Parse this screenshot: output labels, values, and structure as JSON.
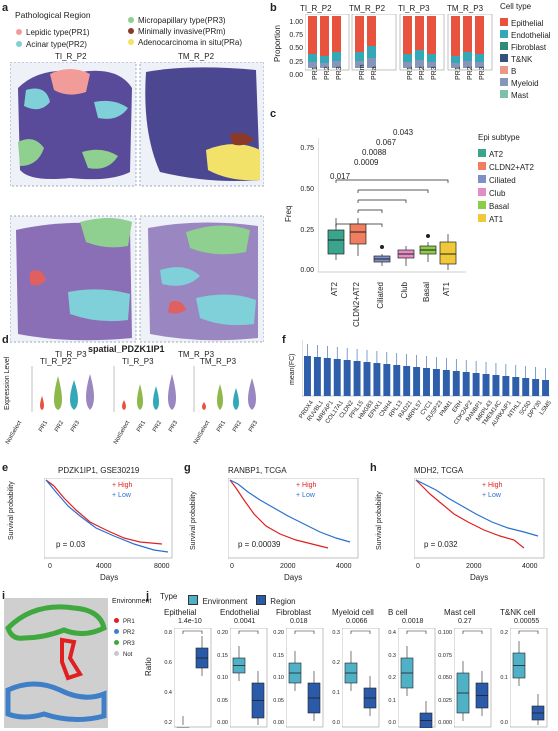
{
  "panels": {
    "a": "a",
    "b": "b",
    "c": "c",
    "d": "d",
    "e": "e",
    "f": "f",
    "g": "g",
    "h": "h",
    "i": "i",
    "j": "j"
  },
  "panel_a": {
    "legend_title": "Pathological Region",
    "legend": [
      {
        "label": "Lepidic type(PR1)",
        "color": "#f29c99"
      },
      {
        "label": "Acinar type(PR2)",
        "color": "#7fd0d8"
      },
      {
        "label": "Micropapillary type(PR3)",
        "color": "#8fcf8f"
      },
      {
        "label": "Minimally invasive(PRm)",
        "color": "#8b3a2a"
      },
      {
        "label": "Adenocarcinoma in situ(PRa)",
        "color": "#f3e26a"
      }
    ],
    "slides": [
      "TI_R_P2",
      "TM_R_P2",
      "TI_R_P3",
      "TM_R_P3"
    ]
  },
  "panel_b": {
    "group_labels": [
      "TI_R_P2",
      "TM_R_P2",
      "TI_R_P3",
      "TM_R_P3"
    ],
    "ylabel": "Proportion",
    "yticks": [
      "1.00",
      "0.75",
      "0.50",
      "0.25",
      "0.00"
    ],
    "legend_title": "Cell type",
    "legend": [
      {
        "label": "Epithelial",
        "color": "#e8533f"
      },
      {
        "label": "Endothelial",
        "color": "#35a8b8"
      },
      {
        "label": "Fibroblast",
        "color": "#2f8a78"
      },
      {
        "label": "T&NK",
        "color": "#35507e"
      },
      {
        "label": "B",
        "color": "#e89a84"
      },
      {
        "label": "Myeloid",
        "color": "#8696b8"
      },
      {
        "label": "Mast",
        "color": "#7fbfa8"
      }
    ]
  },
  "panel_c": {
    "legend_title": "Epi subtype",
    "legend": [
      {
        "label": "AT2",
        "color": "#3aa48d"
      },
      {
        "label": "CLDN2+AT2",
        "color": "#ef7f5f"
      },
      {
        "label": "Ciliated",
        "color": "#7f90c8"
      },
      {
        "label": "Club",
        "color": "#e48cc6"
      },
      {
        "label": "Basal",
        "color": "#8dcb4a"
      },
      {
        "label": "AT1",
        "color": "#f0c93a"
      }
    ],
    "ylabel": "Freq",
    "yticks": [
      "0.00",
      "0.25",
      "0.50",
      "0.75"
    ],
    "pvalues": [
      "0.043",
      "0.067",
      "0.0088",
      "0.0009",
      "0.017"
    ]
  },
  "panel_d": {
    "title": "spatial_PDZK1IP1",
    "ylabel": "Expression Level",
    "plots": [
      {
        "title": "TI_R_P2",
        "yticks": [
          "3",
          "2",
          "1",
          "0"
        ],
        "x": [
          "NotSelect",
          "PR1",
          "PR2",
          "PR3"
        ]
      },
      {
        "title": "TI_R_P3",
        "yticks": [
          "3",
          "2",
          "1",
          "0"
        ],
        "x": [
          "NotSelect",
          "PR1",
          "PR2",
          "PR3"
        ]
      },
      {
        "title": "TM_R_P3",
        "yticks": [
          "2.5",
          "2.0",
          "1.5",
          "1.0",
          "0.5",
          "0.0"
        ],
        "x": [
          "NotSelect",
          "PR1",
          "PR2",
          "PR3"
        ]
      }
    ]
  },
  "panel_f": {
    "ylabel": "mean(FC)",
    "genes": [
      "PRDX4",
      "RUVBL1",
      "MRFAP1",
      "COL17A1",
      "CLDN2",
      "PPIL15",
      "HMGB3",
      "EPHX1",
      "CNIH4",
      "RPL13",
      "RAD21",
      "MRPL57",
      "CYC1",
      "DUSP23",
      "PMM1",
      "ERH",
      "CDK2AP2",
      "RANBP1",
      "MRPL43",
      "TMEM14C",
      "AURKAIP1",
      "NTHL1",
      "SC5D",
      "DPY30",
      "LSM5"
    ]
  },
  "panel_e": {
    "title": "PDZK1IP1, GSE30219",
    "ylabel": "Survival probability",
    "xlabel": "Days",
    "xticks": [
      "0",
      "4000",
      "8000"
    ],
    "yticks": [
      "1.00",
      "0.75",
      "0.50",
      "0.25",
      "0.00"
    ],
    "high": "High",
    "low": "Low",
    "p": "p = 0.03"
  },
  "panel_g": {
    "title": "RANBP1, TCGA",
    "ylabel": "Survival probability",
    "xlabel": "Days",
    "xticks": [
      "0",
      "2000",
      "4000"
    ],
    "yticks": [
      "1.00",
      "0.75",
      "0.50",
      "0.25",
      "0.00"
    ],
    "high": "High",
    "low": "Low",
    "p": "p = 0.00039"
  },
  "panel_h": {
    "title": "MDH2, TCGA",
    "ylabel": "Survival probability",
    "xlabel": "Days",
    "xticks": [
      "0",
      "2000",
      "4000"
    ],
    "yticks": [
      "1.00",
      "0.75",
      "0.50",
      "0.25",
      "0.00"
    ],
    "high": "High",
    "low": "Low",
    "p": "p = 0.032"
  },
  "panel_i": {
    "legend_title": "Environment",
    "legend": [
      {
        "label": "PR1",
        "color": "#e02020"
      },
      {
        "label": "PR2",
        "color": "#3f7fc8"
      },
      {
        "label": "PR3",
        "color": "#3fa83f"
      },
      {
        "label": "Not",
        "color": "#c8c8c8"
      }
    ]
  },
  "panel_j": {
    "type_label": "Type",
    "legend": [
      {
        "label": "Environment",
        "color": "#4fb0c6"
      },
      {
        "label": "Region",
        "color": "#2a5aa8"
      }
    ],
    "ylabel": "Ratio",
    "plots": [
      {
        "title": "Epithelial",
        "p": "1.4e-10",
        "yticks": [
          "0.8",
          "0.6",
          "0.4",
          "0.2"
        ]
      },
      {
        "title": "Endothelial",
        "p": "0.0041",
        "yticks": [
          "0.20",
          "0.15",
          "0.10",
          "0.05",
          "0.00"
        ]
      },
      {
        "title": "Fibroblast",
        "p": "0.018",
        "yticks": [
          "0.20",
          "0.15",
          "0.10",
          "0.05",
          "0.00"
        ]
      },
      {
        "title": "Myeloid cell",
        "p": "0.0066",
        "yticks": [
          "0.3",
          "0.2",
          "0.1",
          "0.0"
        ]
      },
      {
        "title": "B cell",
        "p": "0.0018",
        "yticks": [
          "0.4",
          "0.3",
          "0.2",
          "0.1",
          "0.0"
        ]
      },
      {
        "title": "Mast cell",
        "p": "0.27",
        "yticks": [
          "0.100",
          "0.075",
          "0.050",
          "0.025",
          "0.000"
        ]
      },
      {
        "title": "T&NK cell",
        "p": "0.00055",
        "yticks": [
          "0.2",
          "0.1",
          "0.0"
        ]
      }
    ]
  }
}
